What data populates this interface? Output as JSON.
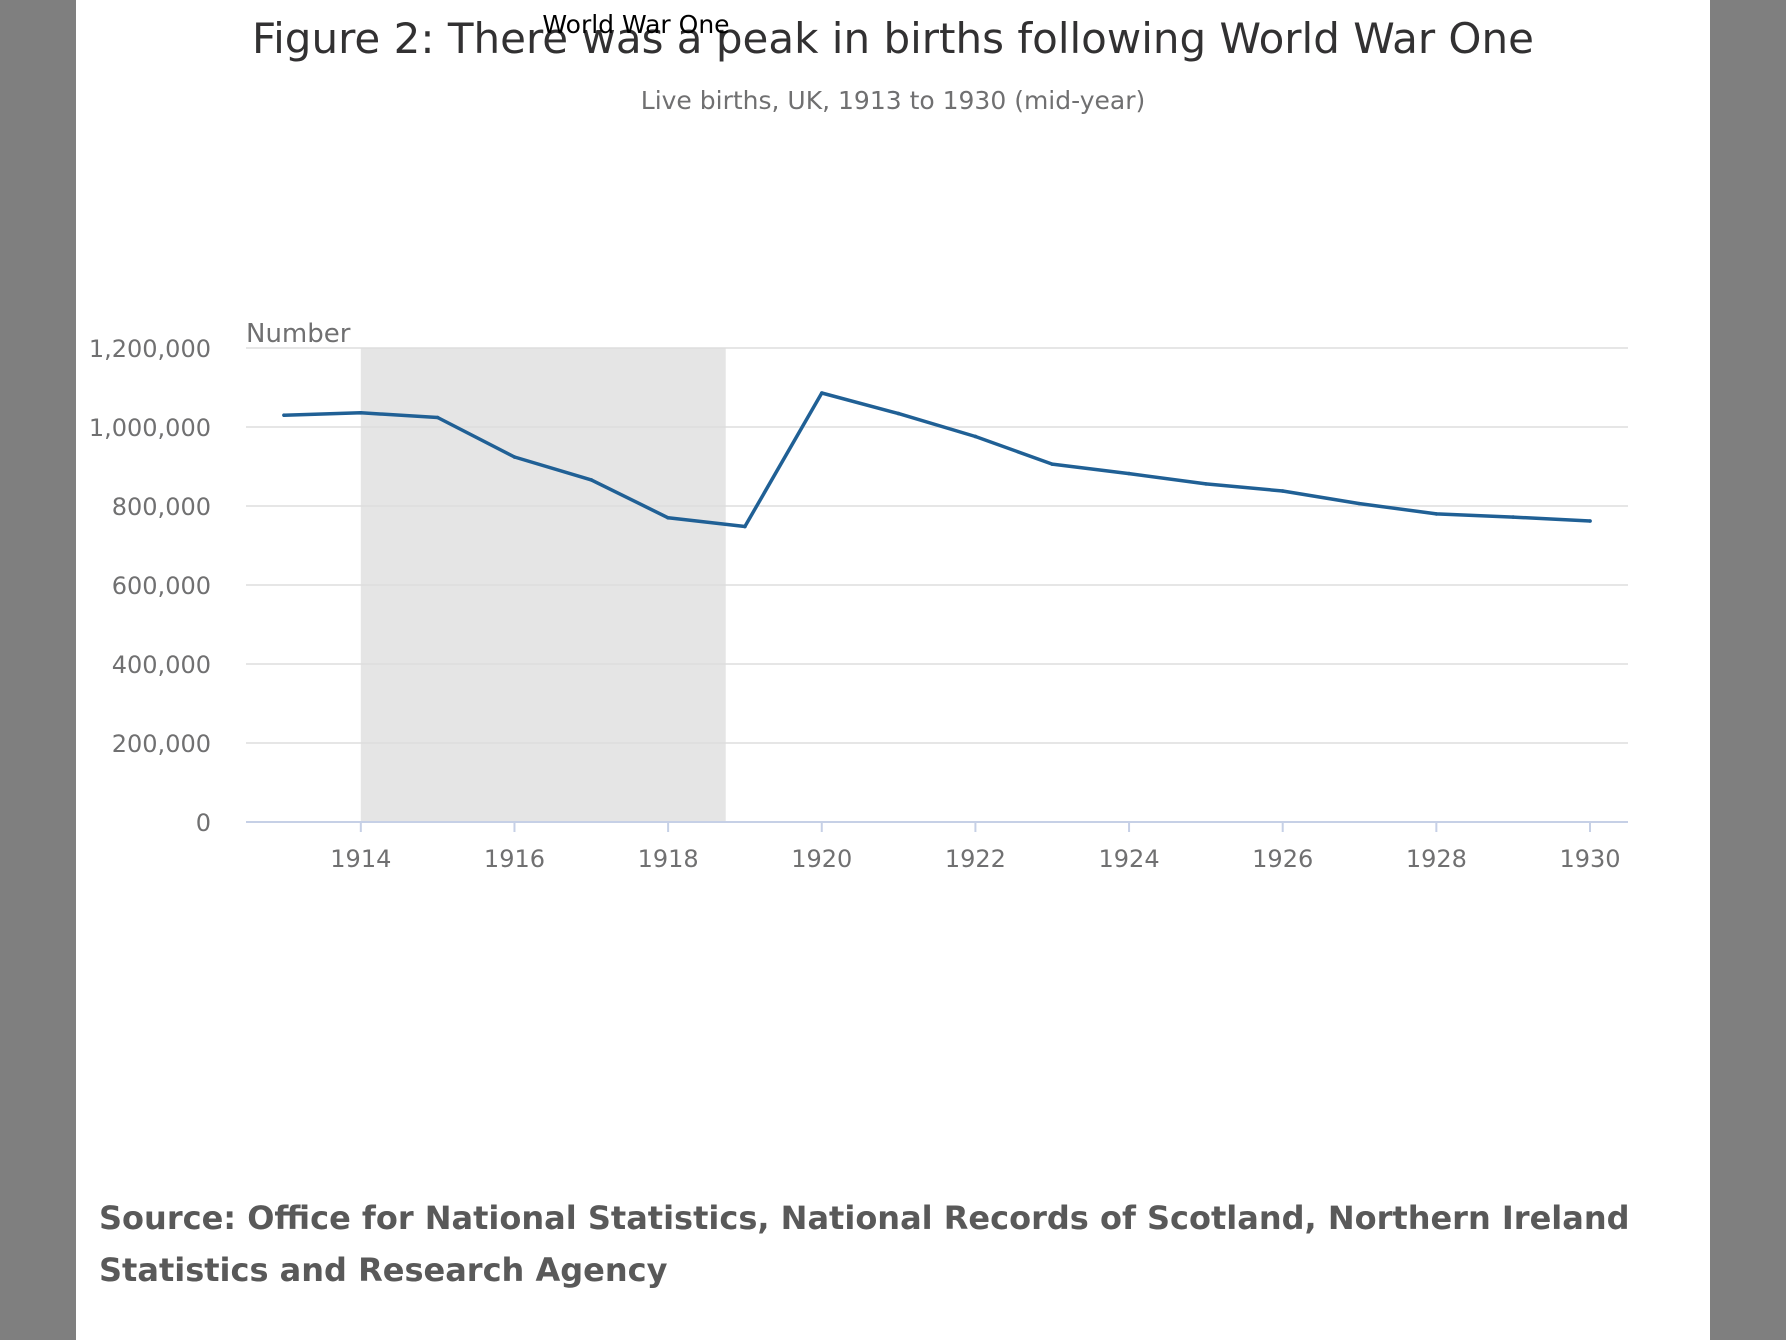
{
  "colors": {
    "line": "#206095",
    "shading": "#e5e5e5",
    "gridline": "#dddddd",
    "axis": "#c6d0e6",
    "tick_text": "#707071",
    "title_text": "#323132",
    "source_text": "#595959"
  },
  "chart_data": {
    "type": "line",
    "title": "Figure 2: There was a peak in births following World War One",
    "subtitle": "Live births, UK, 1913 to 1930 (mid-year)",
    "ylabel": "Number",
    "xlabel": "",
    "ylim": [
      0,
      1200000
    ],
    "xlim": [
      1913,
      1930
    ],
    "yticks": [
      0,
      200000,
      400000,
      600000,
      800000,
      1000000,
      1200000
    ],
    "ytick_labels": [
      "0",
      "200,000",
      "400,000",
      "600,000",
      "800,000",
      "1,000,000",
      "1,200,000"
    ],
    "xticks": [
      1914,
      1916,
      1918,
      1920,
      1922,
      1924,
      1926,
      1928,
      1930
    ],
    "xtick_labels": [
      "1914",
      "1916",
      "1918",
      "1920",
      "1922",
      "1924",
      "1926",
      "1928",
      "1930"
    ],
    "grid": true,
    "legend": "none",
    "shaded_region": {
      "label": "World War One",
      "start": 1914,
      "end": 1918.75
    },
    "series": [
      {
        "x": [
          1913,
          1914,
          1915,
          1916,
          1917,
          1918,
          1919,
          1920,
          1921,
          1922,
          1923,
          1924,
          1925,
          1926,
          1927,
          1928,
          1929,
          1930
        ],
        "values": [
          1030000,
          1036000,
          1024000,
          924000,
          866000,
          770000,
          748000,
          1086000,
          1034000,
          976000,
          906000,
          882000,
          856000,
          838000,
          806000,
          780000,
          772000,
          762000
        ]
      }
    ]
  },
  "source": "Source: Office for National Statistics, National Records of Scotland, Northern Ireland Statistics and Research Agency"
}
